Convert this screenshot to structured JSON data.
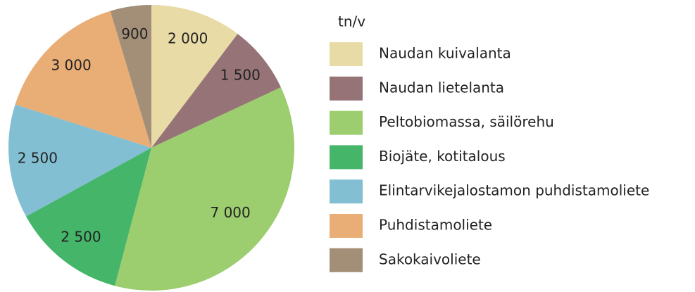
{
  "chart_data": {
    "type": "pie",
    "legend_title": "tn/v",
    "categories": [
      "Naudan kuivalanta",
      "Naudan lietelanta",
      "Peltobiomassa, säilörehu",
      "Biojäte, kotitalous",
      "Elintarvikejalostamon puhdistamoliete",
      "Puhdistamoliete",
      "Sakokaivoliete"
    ],
    "values": [
      2000,
      1500,
      7000,
      2500,
      2500,
      3000,
      900
    ],
    "value_labels": [
      "2 000",
      "1 500",
      "7 000",
      "2 500",
      "2 500",
      "3 000",
      "900"
    ],
    "colors": [
      "#e8dba6",
      "#957377",
      "#9ccd6e",
      "#45b56a",
      "#82bfd3",
      "#e9ad76",
      "#a38f78"
    ],
    "legend_position": "right"
  }
}
